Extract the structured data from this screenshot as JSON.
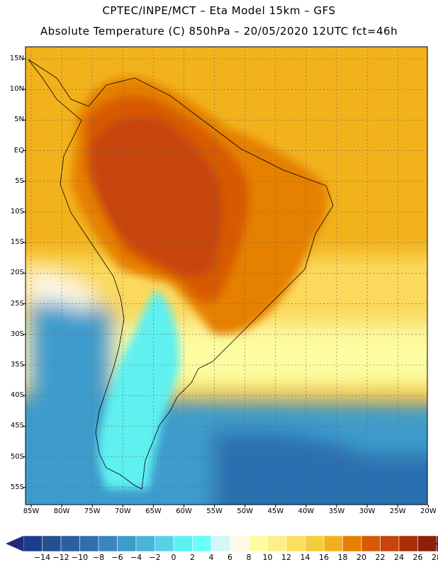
{
  "header": {
    "line1": "CPTEC/INPE/MCT –  Eta Model 15km – GFS",
    "line2": "Absolute Temperature (C) 850hPa – 20/05/2020 12UTC fct=46h"
  },
  "axes": {
    "lat_labels": [
      "15N",
      "10N",
      "5N",
      "EQ",
      "5S",
      "10S",
      "15S",
      "20S",
      "25S",
      "30S",
      "35S",
      "40S",
      "45S",
      "50S",
      "55S"
    ],
    "lon_labels": [
      "85W",
      "80W",
      "75W",
      "70W",
      "65W",
      "60W",
      "55W",
      "50W",
      "45W",
      "40W",
      "35W",
      "30W",
      "25W",
      "20W"
    ]
  },
  "colorbar": {
    "labels": [
      "-14",
      "-12",
      "-10",
      "-8",
      "-6",
      "-4",
      "-2",
      "0",
      "2",
      "4",
      "6",
      "8",
      "10",
      "12",
      "14",
      "16",
      "18",
      "20",
      "22",
      "24",
      "26",
      "28"
    ],
    "colors": [
      "#1e3c8c",
      "#23508f",
      "#2a5fa0",
      "#2f6fb0",
      "#3a86c0",
      "#3d9ccc",
      "#48b4d8",
      "#58d0e8",
      "#5ef0f0",
      "#68fff8",
      "#d4f6fb",
      "#fdf9e6",
      "#fdfca0",
      "#fcef86",
      "#fbdf60",
      "#f6cb3e",
      "#f0b020",
      "#e68000",
      "#d85a06",
      "#c8440a",
      "#aa2f08",
      "#8c1f0c",
      "#6e1810"
    ],
    "left_arrow_color": "#1e2a7a",
    "right_arrow_color": "#6e1028"
  },
  "map": {
    "ocean_colors": {
      "tropical": "#f2b21c",
      "subtropical": "#fbd95c",
      "midlat": "#fdfca0",
      "cold": "#3d9ccc",
      "deep": "#2a6fb0"
    },
    "land_colors": {
      "hot": "#c8440a",
      "warm": "#d85a06",
      "mild": "#e68000",
      "cold": "#5ef0f0"
    }
  }
}
